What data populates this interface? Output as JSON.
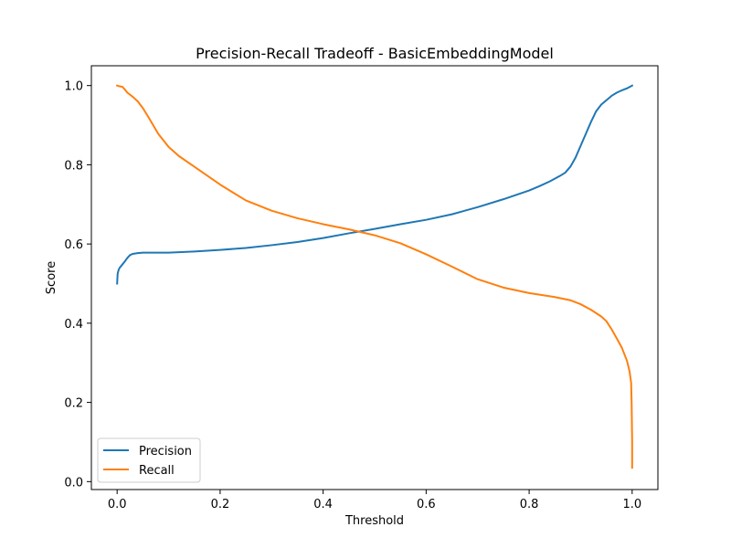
{
  "chart_data": {
    "type": "line",
    "title": "Precision-Recall Tradeoff - BasicEmbeddingModel",
    "xlabel": "Threshold",
    "ylabel": "Score",
    "xlim": [
      -0.05,
      1.05
    ],
    "ylim": [
      -0.02,
      1.05
    ],
    "xticks": [
      0.0,
      0.2,
      0.4,
      0.6,
      0.8,
      1.0
    ],
    "xtick_labels": [
      "0.0",
      "0.2",
      "0.4",
      "0.6",
      "0.8",
      "1.0"
    ],
    "yticks": [
      0.0,
      0.2,
      0.4,
      0.6,
      0.8,
      1.0
    ],
    "ytick_labels": [
      "0.0",
      "0.2",
      "0.4",
      "0.6",
      "0.8",
      "1.0"
    ],
    "grid": false,
    "legend_position": "lower-left",
    "series": [
      {
        "name": "Precision",
        "color": "#1f77b4",
        "x": [
          0.0,
          0.001,
          0.003,
          0.005,
          0.01,
          0.015,
          0.02,
          0.025,
          0.03,
          0.04,
          0.05,
          0.07,
          0.1,
          0.15,
          0.2,
          0.25,
          0.3,
          0.35,
          0.4,
          0.45,
          0.5,
          0.55,
          0.6,
          0.65,
          0.7,
          0.75,
          0.8,
          0.82,
          0.84,
          0.86,
          0.87,
          0.88,
          0.89,
          0.9,
          0.91,
          0.92,
          0.93,
          0.94,
          0.95,
          0.96,
          0.97,
          0.98,
          0.99,
          1.0
        ],
        "y": [
          0.5,
          0.525,
          0.535,
          0.54,
          0.548,
          0.556,
          0.565,
          0.572,
          0.575,
          0.577,
          0.578,
          0.578,
          0.578,
          0.581,
          0.585,
          0.59,
          0.597,
          0.605,
          0.615,
          0.627,
          0.638,
          0.65,
          0.661,
          0.675,
          0.693,
          0.713,
          0.735,
          0.746,
          0.758,
          0.772,
          0.78,
          0.795,
          0.818,
          0.848,
          0.878,
          0.908,
          0.935,
          0.952,
          0.963,
          0.974,
          0.982,
          0.988,
          0.993,
          1.0
        ]
      },
      {
        "name": "Recall",
        "color": "#ff7f0e",
        "x": [
          0.0,
          0.005,
          0.01,
          0.015,
          0.02,
          0.03,
          0.04,
          0.05,
          0.06,
          0.08,
          0.1,
          0.12,
          0.15,
          0.2,
          0.25,
          0.3,
          0.35,
          0.4,
          0.45,
          0.5,
          0.55,
          0.6,
          0.65,
          0.7,
          0.75,
          0.8,
          0.85,
          0.88,
          0.9,
          0.92,
          0.94,
          0.95,
          0.96,
          0.97,
          0.98,
          0.99,
          0.995,
          0.998,
          0.999,
          1.0,
          1.0
        ],
        "y": [
          1.0,
          0.998,
          0.997,
          0.99,
          0.982,
          0.972,
          0.96,
          0.943,
          0.922,
          0.878,
          0.845,
          0.822,
          0.795,
          0.75,
          0.71,
          0.684,
          0.665,
          0.65,
          0.637,
          0.622,
          0.602,
          0.574,
          0.543,
          0.511,
          0.49,
          0.476,
          0.466,
          0.458,
          0.448,
          0.434,
          0.417,
          0.405,
          0.385,
          0.362,
          0.338,
          0.305,
          0.278,
          0.25,
          0.2,
          0.1,
          0.035
        ]
      }
    ]
  }
}
